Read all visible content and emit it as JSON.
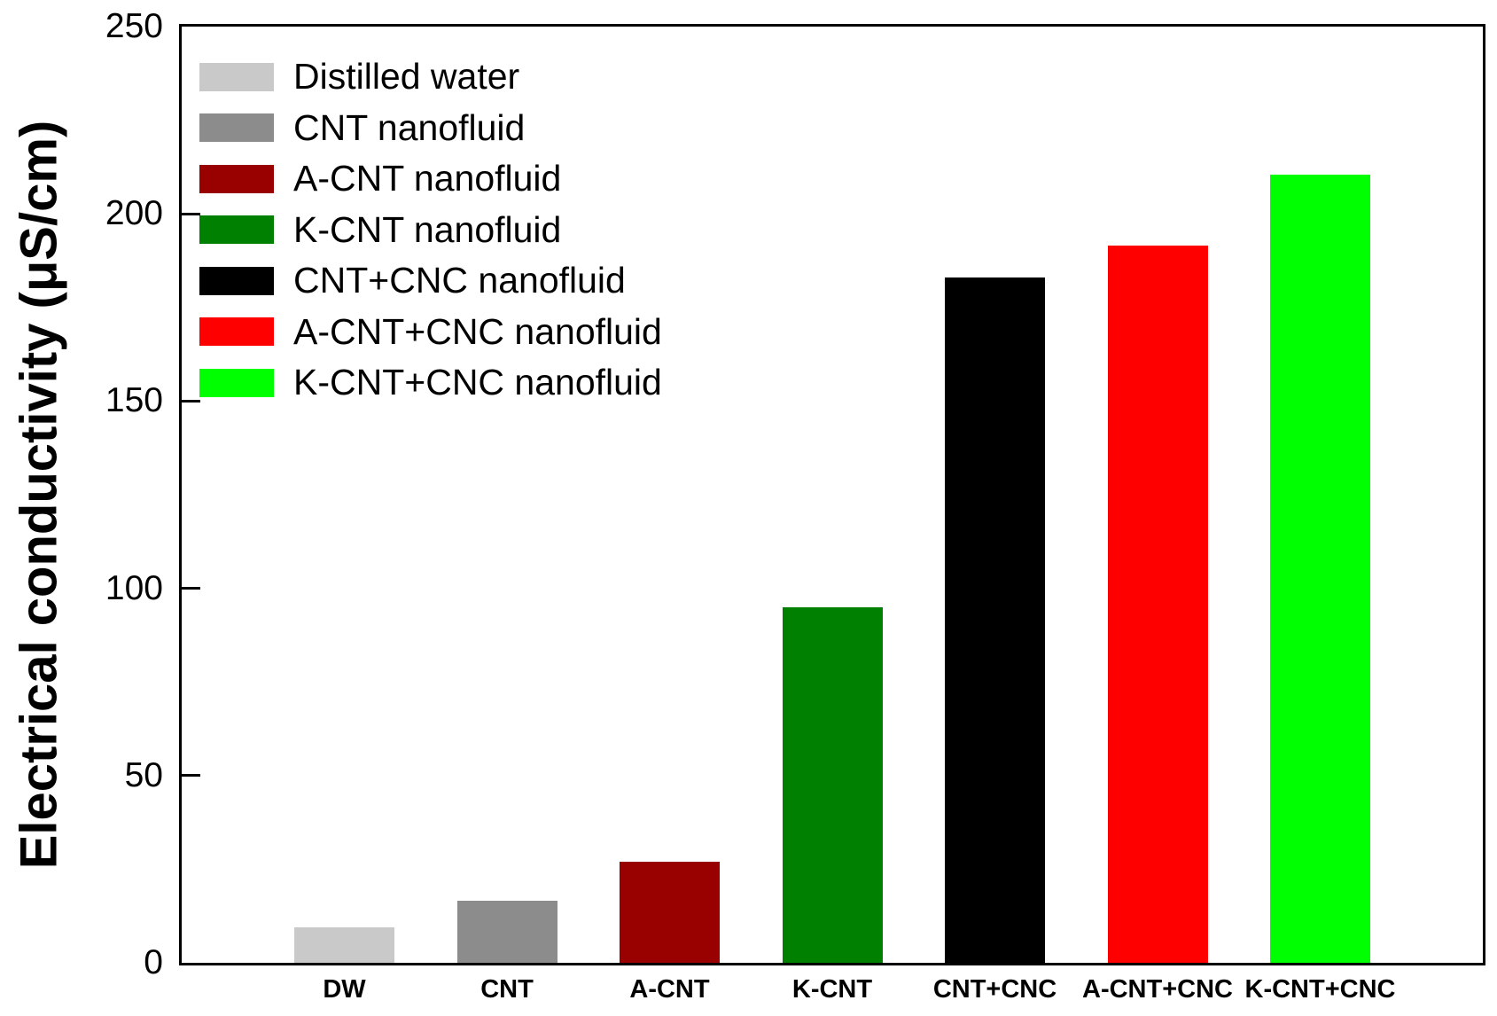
{
  "chart_data": {
    "type": "bar",
    "title": "",
    "ylabel": "Electrical conductivity (μS/cm)",
    "xlabel": "",
    "ylim": [
      0,
      250
    ],
    "ytick_interval": 50,
    "yticks": [
      0,
      50,
      100,
      150,
      200,
      250
    ],
    "grid": false,
    "legend_position": "upper-left",
    "frame": "full-box",
    "axis_color": "#000000",
    "background_color": "#ffffff",
    "categories": [
      "DW",
      "CNT",
      "A-CNT",
      "K-CNT",
      "CNT+CNC",
      "A-CNT+CNC",
      "K-CNT+CNC"
    ],
    "values": [
      9.5,
      16.5,
      27,
      95,
      183,
      191.5,
      210.5
    ],
    "bar_colors": [
      "#c9c9c9",
      "#8c8c8c",
      "#990000",
      "#008000",
      "#000000",
      "#ff0000",
      "#00ff00"
    ],
    "legend_labels": [
      "Distilled water",
      "CNT nanofluid",
      "A-CNT nanofluid",
      "K-CNT nanofluid",
      "CNT+CNC nanofluid",
      "A-CNT+CNC nanofluid",
      "K-CNT+CNC nanofluid"
    ]
  }
}
